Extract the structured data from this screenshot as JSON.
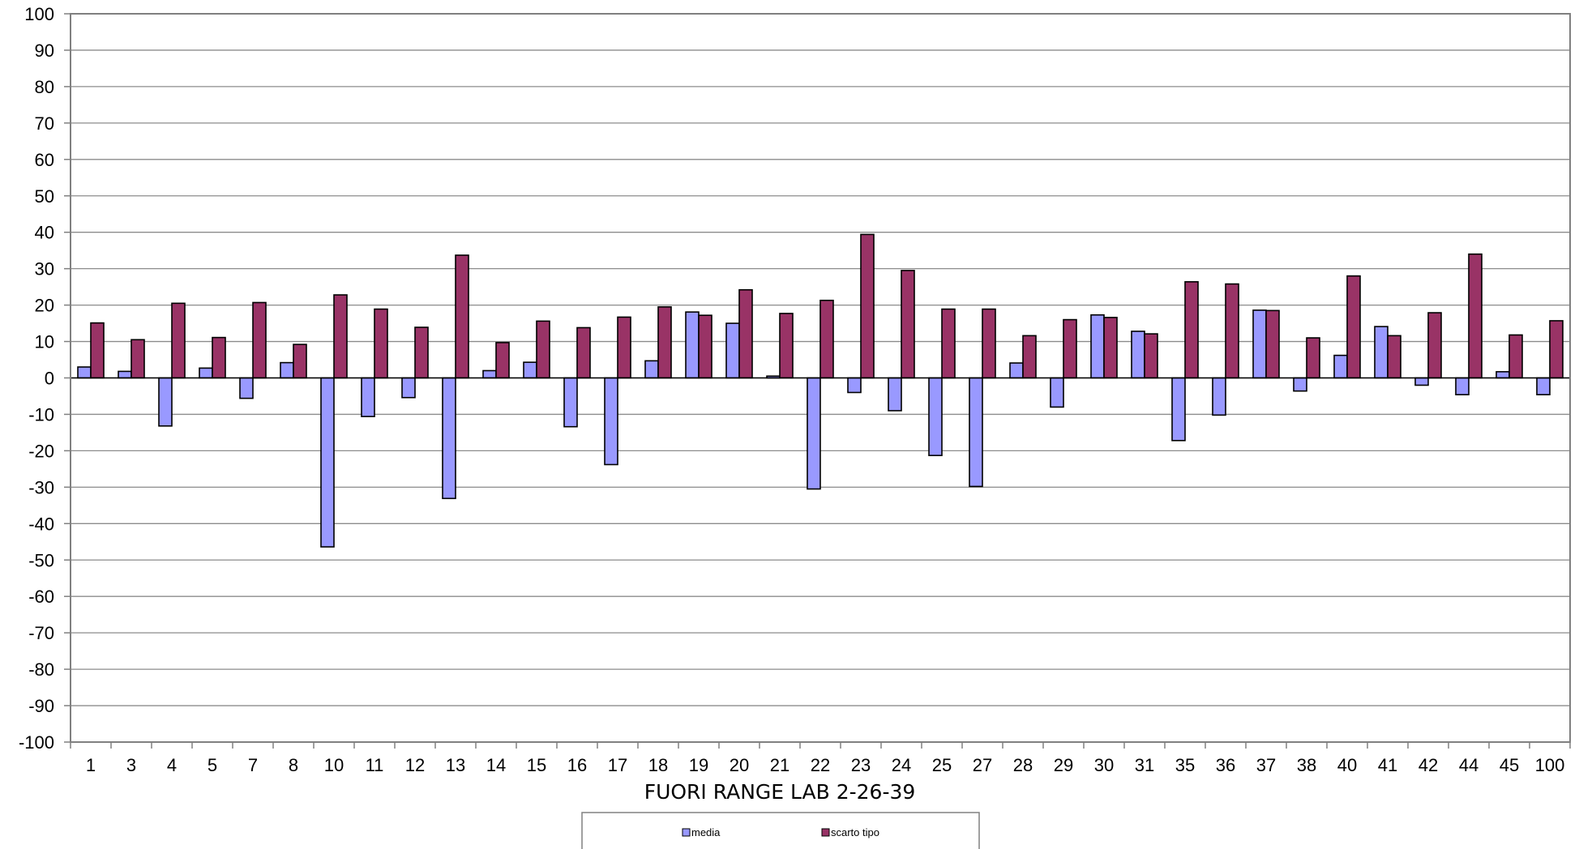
{
  "chart_data": {
    "type": "bar",
    "xlabel": "FUORI RANGE LAB 2-26-39",
    "ylabel": "",
    "ylim": [
      -100,
      100
    ],
    "ytick_step": 10,
    "grid": true,
    "legend_position": "bottom",
    "categories": [
      "1",
      "3",
      "4",
      "5",
      "7",
      "8",
      "10",
      "11",
      "12",
      "13",
      "14",
      "15",
      "16",
      "17",
      "18",
      "19",
      "20",
      "21",
      "22",
      "23",
      "24",
      "25",
      "27",
      "28",
      "29",
      "30",
      "31",
      "35",
      "36",
      "37",
      "38",
      "40",
      "41",
      "42",
      "44",
      "45",
      "100"
    ],
    "series": [
      {
        "name": "media",
        "color": "#9999ff",
        "values": [
          3,
          1.8,
          -13.2,
          2.7,
          -5.6,
          4.2,
          -46.4,
          -10.6,
          -5.4,
          -33.1,
          2,
          4.3,
          -13.4,
          -23.8,
          4.7,
          18.1,
          15,
          0.5,
          -30.5,
          -4,
          -9,
          -21.3,
          -29.8,
          4.1,
          -8,
          17.3,
          12.8,
          -17.2,
          -10.2,
          18.6,
          -3.6,
          6.2,
          14.1,
          -2,
          -4.6,
          1.7,
          -4.6
        ]
      },
      {
        "name": "scarto tipo",
        "color": "#993366",
        "values": [
          15.1,
          10.5,
          20.5,
          11.1,
          20.7,
          9.2,
          22.8,
          18.9,
          13.9,
          33.7,
          9.7,
          15.6,
          13.8,
          16.7,
          19.5,
          17.2,
          24.2,
          17.7,
          21.3,
          39.4,
          29.5,
          18.9,
          18.9,
          11.6,
          16,
          16.6,
          12.1,
          26.4,
          25.8,
          18.5,
          11,
          28,
          11.6,
          17.9,
          34,
          11.8,
          15.7
        ]
      }
    ]
  }
}
